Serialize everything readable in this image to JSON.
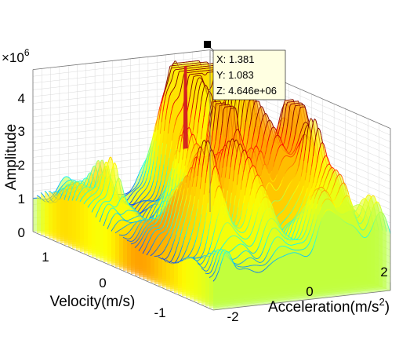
{
  "chart_data": {
    "type": "surface",
    "title": "",
    "xlabel": "Acceleration(m/s",
    "xlabel_superscript": "2",
    "xlabel_suffix": ")",
    "ylabel": "Velocity(m/s)",
    "zlabel": "Amplitude",
    "z_multiplier": "×10",
    "z_multiplier_exponent": "6",
    "x_ticks": [
      "-2",
      "0",
      "2"
    ],
    "y_ticks": [
      "1",
      "0",
      "-1"
    ],
    "z_ticks": [
      "0",
      "1",
      "2",
      "3",
      "4"
    ],
    "xlim": [
      -2.5,
      2.5
    ],
    "ylim": [
      -1.3,
      1.3
    ],
    "zlim": [
      0,
      4.8
    ],
    "grid": true,
    "colormap": "jet (blue low, yellow high)",
    "peak": {
      "x": 1.381,
      "y": 1.083,
      "z": 4.646
    },
    "datatip": {
      "x_text": "X: 1.381",
      "y_text": "Y: 1.083",
      "z_text": "Z: 4.646e+06"
    }
  }
}
